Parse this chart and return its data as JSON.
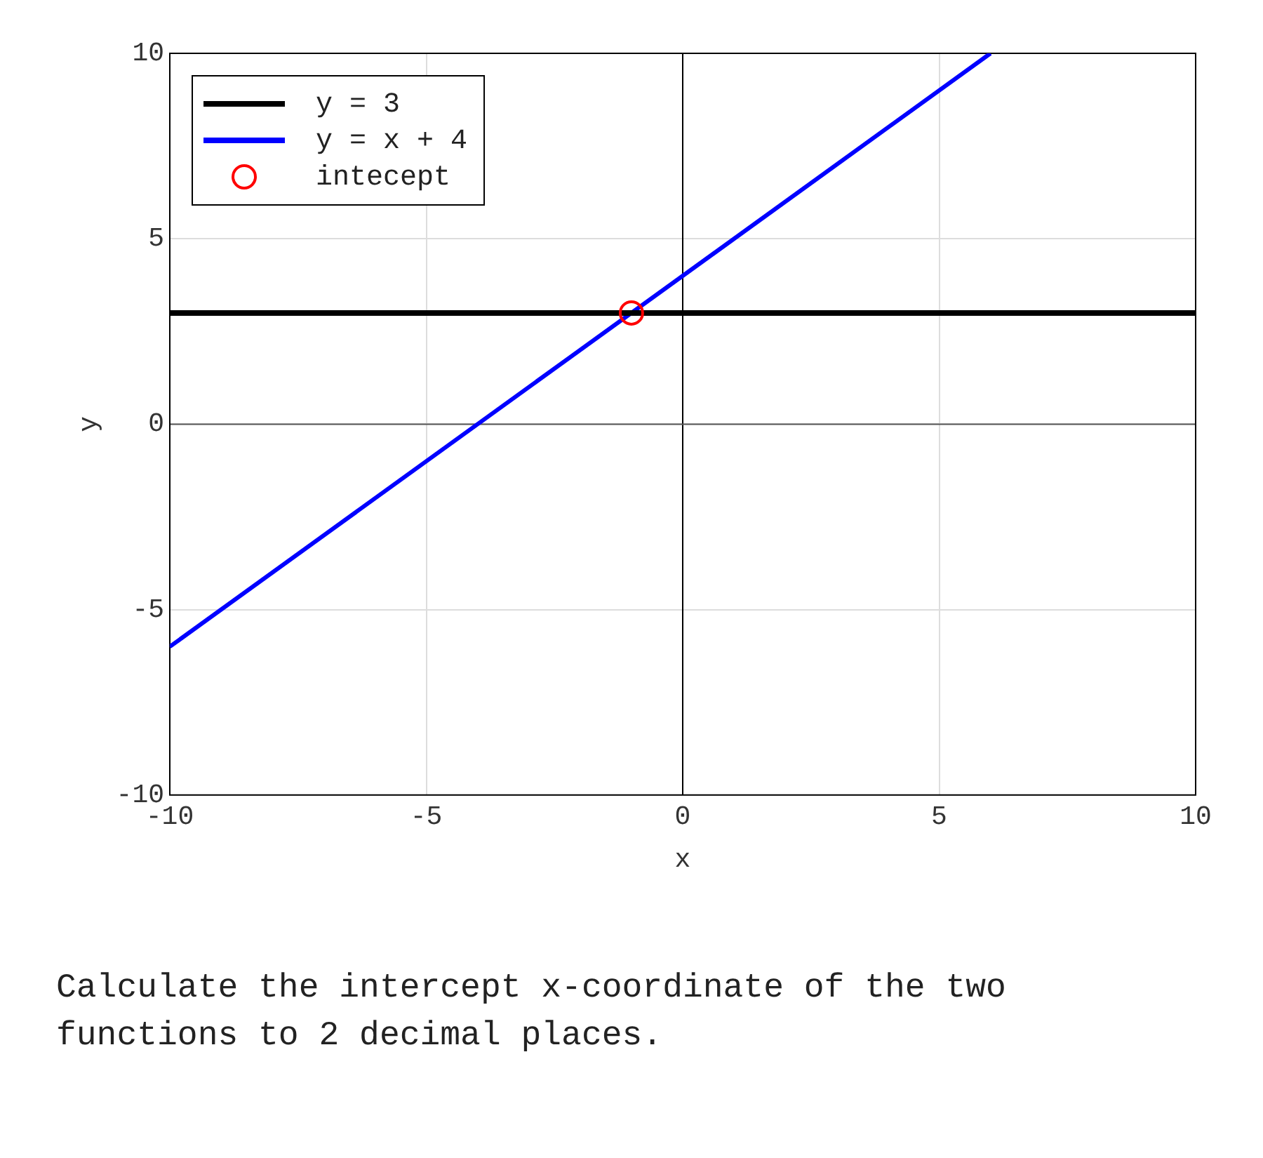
{
  "chart_data": {
    "type": "line",
    "xlabel": "x",
    "ylabel": "y",
    "xlim": [
      -10,
      10
    ],
    "ylim": [
      -10,
      10
    ],
    "xticks": [
      -10,
      -5,
      0,
      5,
      10
    ],
    "yticks": [
      -10,
      -5,
      0,
      5,
      10
    ],
    "grid": true,
    "legend": "top left",
    "series": [
      {
        "name": "y = 3",
        "color": "#000000",
        "type": "line",
        "x": [
          -10,
          10
        ],
        "values": [
          3,
          3
        ]
      },
      {
        "name": "y = x + 4",
        "color": "#0000ff",
        "type": "line",
        "x": [
          -10,
          6
        ],
        "values": [
          -6,
          10
        ]
      },
      {
        "name": "intecept",
        "color": "#ff0000",
        "type": "scatter",
        "marker": "circle",
        "x": [
          -1
        ],
        "values": [
          3
        ]
      }
    ],
    "ref_lines": [
      {
        "axis": "x",
        "value": 0,
        "color": "#000000"
      },
      {
        "axis": "y",
        "value": 0,
        "color": "#555555"
      }
    ],
    "annotations": [
      "Calculate the intercept x-coordinate of the two functions to 2 decimal places."
    ]
  }
}
